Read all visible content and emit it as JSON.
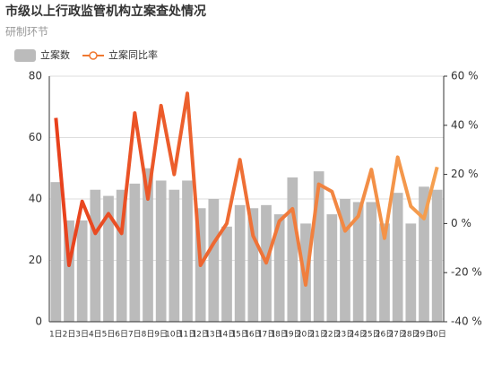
{
  "chart_data": {
    "type": "bar-line",
    "title": "市级以上行政监管机构立案查处情况",
    "subtitle": "研制环节",
    "categories": [
      "1日",
      "2日",
      "3日",
      "4日",
      "5日",
      "6日",
      "7日",
      "8日",
      "9日",
      "10日",
      "11日",
      "12日",
      "13日",
      "14日",
      "15日",
      "16日",
      "17日",
      "18日",
      "19日",
      "20日",
      "21日",
      "22日",
      "23日",
      "24日",
      "25日",
      "26日",
      "27日",
      "28日",
      "29日",
      "30日"
    ],
    "series": [
      {
        "name": "立案数",
        "color": "#bbbbbb",
        "values": [
          45.5,
          33,
          33,
          43,
          41,
          43,
          45,
          50,
          46,
          43,
          46,
          37,
          40,
          31,
          38,
          37,
          38,
          35,
          47,
          32,
          49,
          35,
          40,
          39,
          39,
          32,
          42,
          32,
          44,
          43
        ]
      },
      {
        "name": "立案同比率",
        "color": "#f07830",
        "gradient": [
          "#e8401c",
          "#f5a050"
        ],
        "axis": "y2",
        "values": [
          43,
          -17,
          9,
          -4,
          4,
          -4,
          45,
          10,
          48,
          20,
          53,
          -17,
          -8,
          0,
          26,
          -5,
          -16,
          1,
          6,
          -25,
          16,
          13,
          -3,
          3,
          22,
          -6,
          27,
          7,
          2,
          23
        ]
      }
    ],
    "ylim": [
      0,
      80
    ],
    "yticks": [
      0,
      20,
      40,
      60,
      80
    ],
    "y2lim": [
      -40,
      60
    ],
    "y2ticks": [
      {
        "value": -40,
        "label": "-40 %"
      },
      {
        "value": -20,
        "label": "-20 %"
      },
      {
        "value": 0,
        "label": "0 %"
      },
      {
        "value": 20,
        "label": "20 %"
      },
      {
        "value": 40,
        "label": "40 %"
      },
      {
        "value": 60,
        "label": "60 %"
      }
    ],
    "grid": true
  }
}
